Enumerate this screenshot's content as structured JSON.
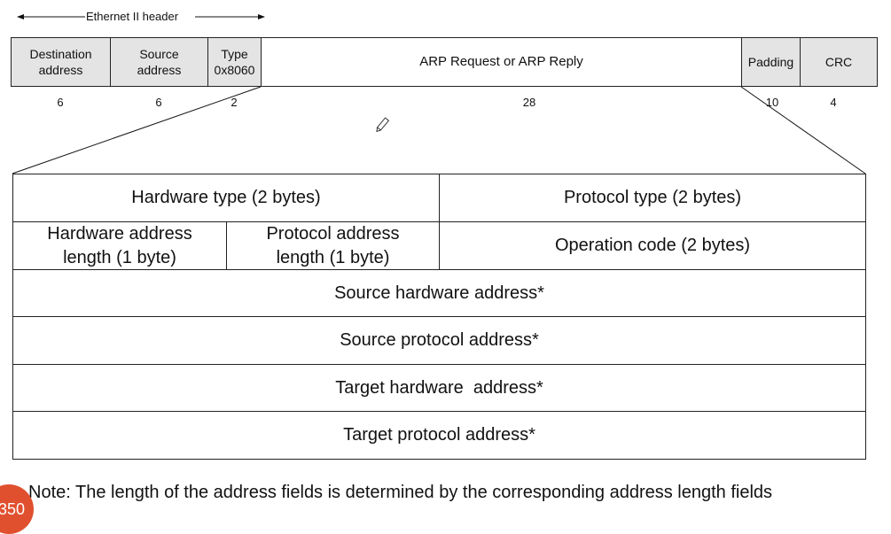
{
  "ethernet_header_label": "Ethernet II header",
  "frame_fields": [
    {
      "name": "Destination address",
      "size": "6"
    },
    {
      "name": "Source address",
      "size": "6"
    },
    {
      "name": "Type\n0x8060",
      "size": "2"
    },
    {
      "name": "ARP Request or ARP Reply",
      "size": "28"
    },
    {
      "name": "Padding",
      "size": "10"
    },
    {
      "name": "CRC",
      "size": "4"
    }
  ],
  "arp_fields": {
    "hardware_type": "Hardware type (2 bytes)",
    "protocol_type": "Protocol type (2 bytes)",
    "hw_addr_len": "Hardware address length (1 byte)",
    "proto_addr_len": "Protocol address length (1 byte)",
    "operation_code": "Operation code (2 bytes)",
    "source_hw": "Source hardware address*",
    "source_proto": "Source protocol address*",
    "target_hw": "Target hardware  address*",
    "target_proto": "Target protocol address*"
  },
  "note": "Note: The length of the address fields is determined by the corresponding address length fields",
  "badge": "350",
  "colors": {
    "field_gray": "#e4e4e4",
    "badge": "#e0502f"
  }
}
